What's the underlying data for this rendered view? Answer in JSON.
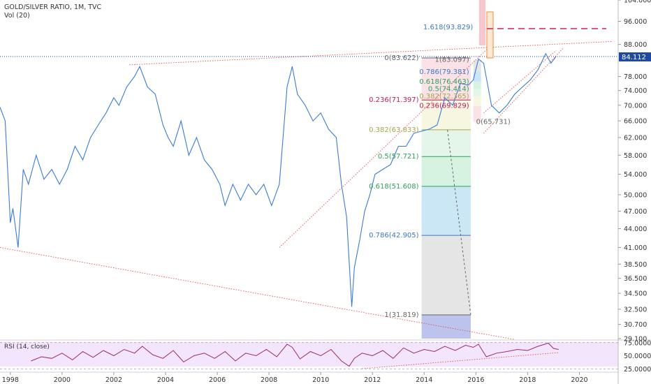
{
  "header": {
    "title": "GOLD/SILVER RATIO, 1M, TVC",
    "vol": "Vol (20)"
  },
  "colors": {
    "price": "#3a7bd5",
    "rsi": "#9c2a6e",
    "trend": "#e0504f",
    "fib_red": "#c2185b",
    "fib_olive": "#a6a54a",
    "fib_green": "#2ea05a",
    "fib_blue": "#3c78c3",
    "fib_gray": "#666666",
    "tag_bg": "#1f4aa3",
    "tag_text": "#ffffff",
    "axis_text": "#333333",
    "target": "#d81b60"
  },
  "price_tag": "84.112",
  "price_axis": {
    "ticks": [
      29.1,
      30.7,
      32.5,
      34.5,
      36.5,
      38.5,
      41.0,
      44.0,
      47.0,
      50.0,
      54.0,
      58.0,
      62.0,
      66.0,
      70.0,
      74.0,
      78.0,
      88.0,
      96.0,
      104.0
    ],
    "labels": [
      "29.100",
      "30.700",
      "32.500",
      "34.500",
      "36.500",
      "38.500",
      "41.000",
      "44.000",
      "47.000",
      "50.000",
      "54.000",
      "58.000",
      "62.000",
      "66.000",
      "70.000",
      "74.000",
      "78.000",
      "88.000",
      "96.000",
      "104.000"
    ],
    "log_scale": true
  },
  "time_axis": {
    "years": [
      1998,
      2000,
      2002,
      2004,
      2006,
      2008,
      2010,
      2012,
      2014,
      2016,
      2018,
      2020
    ],
    "labels": [
      "1998",
      "2000",
      "2002",
      "2004",
      "2006",
      "2008",
      "2010",
      "2012",
      "2014",
      "2016",
      "2018",
      "2020"
    ]
  },
  "fib_main": [
    {
      "text": "1(31.819)",
      "level": 31.819,
      "color": "#666666"
    },
    {
      "text": "0.786(42.905)",
      "level": 42.905,
      "color": "#3c78c3"
    },
    {
      "text": "0.618(51.608)",
      "level": 51.608,
      "color": "#2ea05a"
    },
    {
      "text": "0.5(57.721)",
      "level": 57.721,
      "color": "#2ea05a"
    },
    {
      "text": "0.382(63.833)",
      "level": 63.833,
      "color": "#a6a54a"
    },
    {
      "text": "0.236(71.397)",
      "level": 71.397,
      "color": "#c2185b"
    },
    {
      "text": "0(83.622)",
      "level": 83.622,
      "color": "#666666"
    },
    {
      "text": "1.618(93.829)",
      "level": 93.829,
      "color": "#3c78c3"
    }
  ],
  "fib_small": [
    {
      "text": "1(83.097)",
      "level": 83.097,
      "color": "#666666"
    },
    {
      "text": "0.786(79.381)",
      "level": 79.381,
      "color": "#3c78c3"
    },
    {
      "text": "0.618(76.463)",
      "level": 76.463,
      "color": "#2ea05a"
    },
    {
      "text": "0.5(74.414)",
      "level": 74.414,
      "color": "#2ea05a"
    },
    {
      "text": "0.382(72.365)",
      "level": 72.365,
      "color": "#a6a54a"
    },
    {
      "text": "0.236(69.829)",
      "level": 69.829,
      "color": "#c2185b"
    },
    {
      "text": "0(65.731)",
      "level": 65.731,
      "color": "#666666"
    }
  ],
  "rsi": {
    "label": "RSI (14, close)",
    "ticks": [
      75,
      50,
      25
    ],
    "tick_labels": [
      "75.0000",
      "50.0000",
      "25.0000"
    ],
    "x": [
      1998.8,
      1999.2,
      1999.6,
      2000.0,
      2000.4,
      2000.8,
      2001.2,
      2001.6,
      2002.0,
      2002.4,
      2002.8,
      2003.1,
      2003.5,
      2003.9,
      2004.3,
      2004.7,
      2005.1,
      2005.5,
      2005.9,
      2006.3,
      2006.7,
      2007.1,
      2007.5,
      2007.9,
      2008.3,
      2008.7,
      2008.9,
      2009.2,
      2009.6,
      2010.0,
      2010.4,
      2010.8,
      2011.1,
      2011.3,
      2011.6,
      2012.0,
      2012.4,
      2012.8,
      2013.2,
      2013.6,
      2014.0,
      2014.4,
      2014.8,
      2015.2,
      2015.6,
      2015.9,
      2016.1,
      2016.4,
      2016.8,
      2017.2,
      2017.6,
      2018.0,
      2018.4,
      2018.8,
      2019.0,
      2019.2
    ],
    "values": [
      40,
      48,
      45,
      55,
      42,
      58,
      47,
      60,
      50,
      62,
      55,
      68,
      52,
      45,
      60,
      38,
      50,
      55,
      45,
      58,
      40,
      55,
      50,
      62,
      48,
      72,
      66,
      44,
      58,
      50,
      62,
      40,
      30,
      45,
      55,
      50,
      60,
      45,
      65,
      55,
      62,
      58,
      68,
      60,
      70,
      66,
      72,
      48,
      55,
      58,
      62,
      60,
      68,
      74,
      64,
      62
    ],
    "ylim": [
      20,
      80
    ]
  },
  "chart_data": {
    "type": "line",
    "title": "GOLD/SILVER RATIO, 1M, TVC",
    "xlabel": "",
    "ylabel": "",
    "xlim": [
      1997.6,
      2021.5
    ],
    "ylim": [
      29.1,
      104.0
    ],
    "log_scale": true,
    "grid": false,
    "last_value": 84.112,
    "series": [
      {
        "x": [
          1997.6,
          1997.8,
          1998.0,
          1998.1,
          1998.3,
          1998.5,
          1998.7,
          1999.0,
          1999.3,
          1999.6,
          1999.9,
          2000.2,
          2000.5,
          2000.8,
          2001.1,
          2001.4,
          2001.7,
          2002.0,
          2002.2,
          2002.5,
          2002.8,
          2003.0,
          2003.3,
          2003.6,
          2003.9,
          2004.1,
          2004.3,
          2004.6,
          2004.9,
          2005.2,
          2005.5,
          2005.8,
          2006.1,
          2006.3,
          2006.6,
          2006.9,
          2007.2,
          2007.5,
          2007.8,
          2008.1,
          2008.4,
          2008.7,
          2008.9,
          2009.1,
          2009.4,
          2009.7,
          2010.0,
          2010.3,
          2010.6,
          2010.8,
          2011.0,
          2011.2,
          2011.3,
          2011.5,
          2011.7,
          2011.9,
          2012.1,
          2012.4,
          2012.7,
          2013.0,
          2013.3,
          2013.6,
          2013.9,
          2014.2,
          2014.5,
          2014.8,
          2015.1,
          2015.4,
          2015.7,
          2015.9,
          2016.1,
          2016.3,
          2016.6,
          2016.9,
          2017.2,
          2017.5,
          2017.8,
          2018.1,
          2018.4,
          2018.7,
          2018.9,
          2019.1
        ],
        "y": [
          69.5,
          66.0,
          45.0,
          47.5,
          41.0,
          55.0,
          52.0,
          58.0,
          53.0,
          55.0,
          52.0,
          55.0,
          60.0,
          57.0,
          62.0,
          65.0,
          68.0,
          72.0,
          70.0,
          75.0,
          78.0,
          81.0,
          75.0,
          73.0,
          65.0,
          62.0,
          60.0,
          66.0,
          58.0,
          62.0,
          57.0,
          55.0,
          52.0,
          48.0,
          52.0,
          49.0,
          52.0,
          50.0,
          52.0,
          48.0,
          52.0,
          75.0,
          81.0,
          73.0,
          70.0,
          66.0,
          68.0,
          64.0,
          62.0,
          52.0,
          46.0,
          32.8,
          38.0,
          42.0,
          47.0,
          50.0,
          54.0,
          55.0,
          56.0,
          60.0,
          60.0,
          63.0,
          63.5,
          64.0,
          65.0,
          72.0,
          70.0,
          76.0,
          75.5,
          77.0,
          83.3,
          82.0,
          70.0,
          68.0,
          70.0,
          73.0,
          75.0,
          77.0,
          80.0,
          85.0,
          82.0,
          84.1
        ]
      }
    ]
  }
}
